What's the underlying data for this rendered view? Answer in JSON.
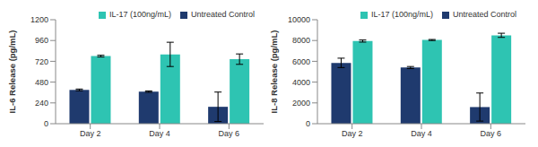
{
  "chart_data": [
    {
      "type": "bar",
      "y_label": "IL-6 Release (pg/mL)",
      "categories": [
        "Day 2",
        "Day 4",
        "Day 6"
      ],
      "series": [
        {
          "name": "Untreated Control",
          "color": "#1f3a6e",
          "values": [
            390,
            370,
            195
          ],
          "errors": [
            10,
            8,
            170
          ]
        },
        {
          "name": "IL-17 (100ng/mL)",
          "color": "#2ec4b2",
          "values": [
            780,
            800,
            745
          ],
          "errors": [
            10,
            140,
            60
          ]
        }
      ],
      "ylim": [
        0,
        1200
      ],
      "yticks": [
        0,
        240,
        480,
        720,
        960,
        1200
      ],
      "grid": false,
      "legend": "top-right"
    },
    {
      "type": "bar",
      "y_label": "IL-8 Release (pg/mL)",
      "categories": [
        "Day 2",
        "Day 4",
        "Day 6"
      ],
      "series": [
        {
          "name": "Untreated Control",
          "color": "#1f3a6e",
          "values": [
            5850,
            5400,
            1600
          ],
          "errors": [
            450,
            100,
            1350
          ]
        },
        {
          "name": "IL-17 (100ng/mL)",
          "color": "#2ec4b2",
          "values": [
            7950,
            8050,
            8500
          ],
          "errors": [
            100,
            50,
            200
          ]
        }
      ],
      "ylim": [
        0,
        10000
      ],
      "yticks": [
        0,
        2000,
        4000,
        6000,
        8000,
        10000
      ],
      "grid": false,
      "legend": "top-right"
    }
  ]
}
